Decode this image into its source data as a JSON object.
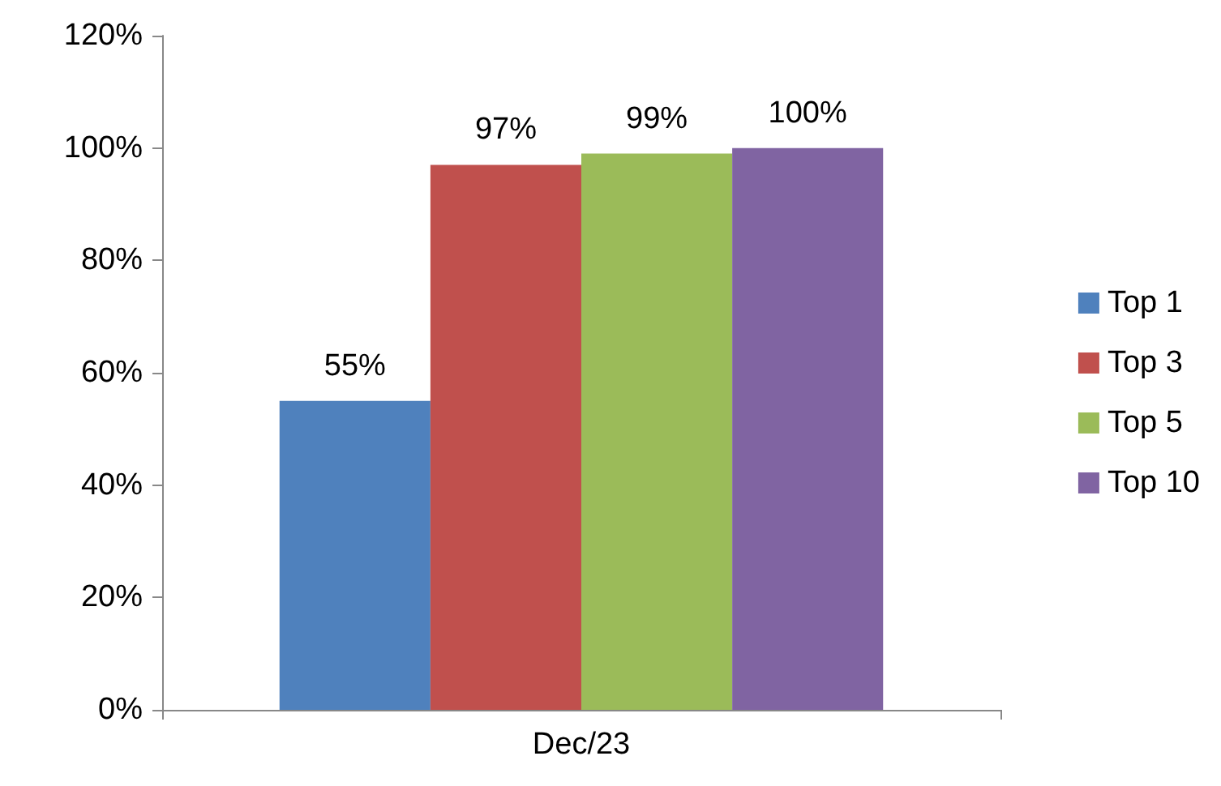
{
  "chart_data": {
    "type": "bar",
    "categories": [
      "Dec/23"
    ],
    "series": [
      {
        "name": "Top 1",
        "color": "#4f81bd",
        "values": [
          55
        ],
        "value_labels": [
          "55%"
        ]
      },
      {
        "name": "Top 3",
        "color": "#c0504d",
        "values": [
          97
        ],
        "value_labels": [
          "97%"
        ]
      },
      {
        "name": "Top 5",
        "color": "#9bbb59",
        "values": [
          99
        ],
        "value_labels": [
          "99%"
        ]
      },
      {
        "name": "Top 10",
        "color": "#8064a2",
        "values": [
          100
        ],
        "value_labels": [
          "100%"
        ]
      }
    ],
    "ylim": [
      0,
      120
    ],
    "yticks": [
      {
        "value": 0,
        "label": "0%"
      },
      {
        "value": 20,
        "label": "20%"
      },
      {
        "value": 40,
        "label": "40%"
      },
      {
        "value": 60,
        "label": "60%"
      },
      {
        "value": 80,
        "label": "80%"
      },
      {
        "value": 100,
        "label": "100%"
      },
      {
        "value": 120,
        "label": "120%"
      }
    ],
    "grid": false,
    "legend": "right"
  }
}
